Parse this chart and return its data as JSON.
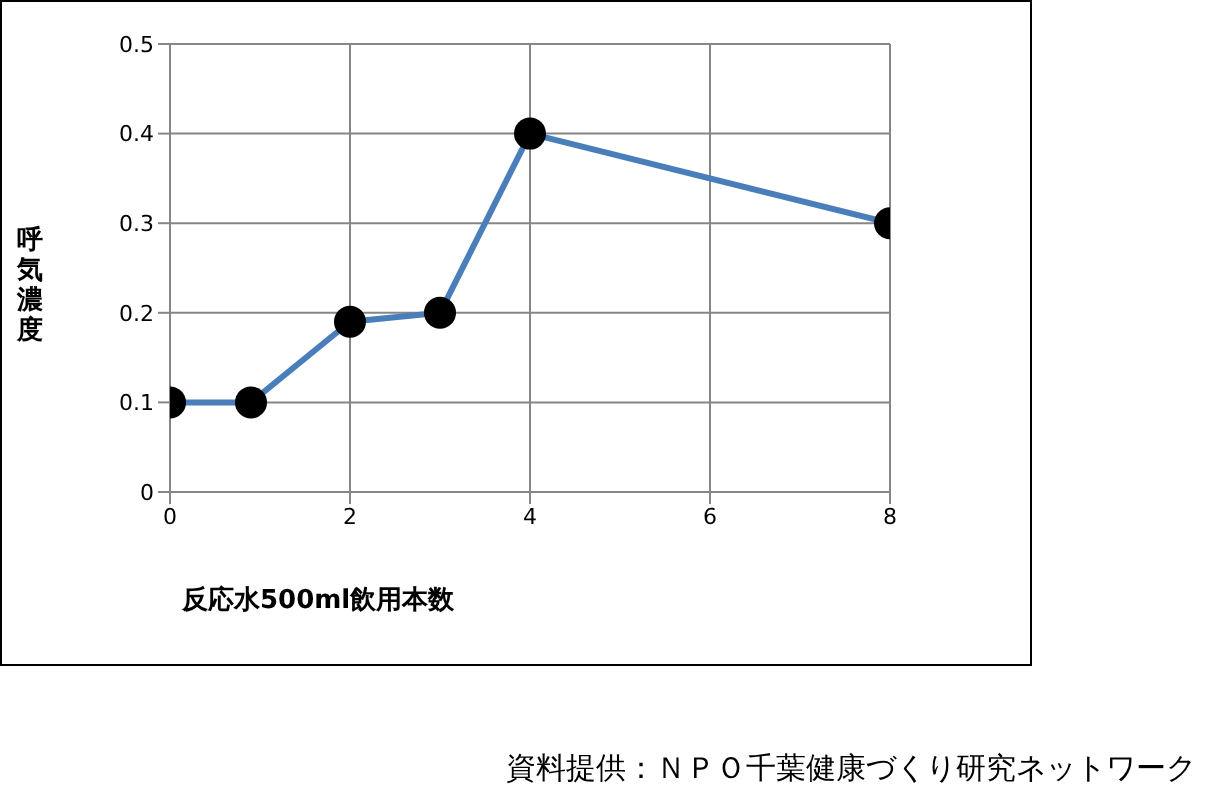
{
  "chart_data": {
    "type": "line",
    "xlabel": "反応水500ml飲用本数",
    "ylabel": "呼気濃度",
    "x": [
      0,
      0.9,
      2,
      3,
      4,
      8
    ],
    "series": [
      {
        "color": "#4a7ebb",
        "values": [
          0.1,
          0.1,
          0.19,
          0.2,
          0.4,
          0.3
        ]
      }
    ],
    "xlim": [
      0,
      8
    ],
    "xticks": [
      0,
      2,
      4,
      6,
      8
    ],
    "ylim": [
      0,
      0.5
    ],
    "yticks": [
      0,
      0.1,
      0.2,
      0.3,
      0.4,
      0.5
    ],
    "grid": true,
    "marker": "circle",
    "line_style": "solid",
    "legend": false,
    "annotations": [
      "資料提供：ＮＰＯ千葉健康づくり研究ネットワーク"
    ]
  }
}
